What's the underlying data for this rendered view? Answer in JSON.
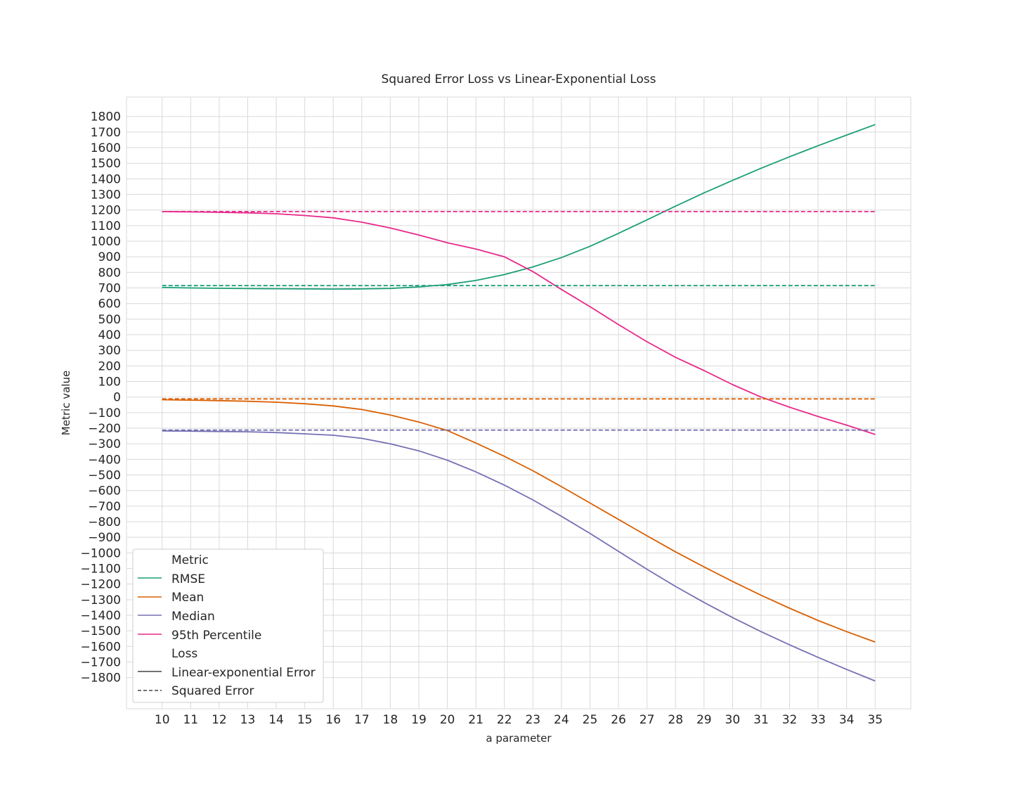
{
  "chart_data": {
    "type": "line",
    "title": "Squared Error Loss vs Linear-Exponential Loss",
    "xlabel": "a parameter",
    "ylabel": "Metric value",
    "xlim": [
      8.75,
      36.25
    ],
    "ylim": [
      -2000,
      1925
    ],
    "x_ticks": [
      10,
      11,
      12,
      13,
      14,
      15,
      16,
      17,
      18,
      19,
      20,
      21,
      22,
      23,
      24,
      25,
      26,
      27,
      28,
      29,
      30,
      31,
      32,
      33,
      34,
      35
    ],
    "y_ticks": [
      1800,
      1700,
      1600,
      1500,
      1400,
      1300,
      1200,
      1100,
      1000,
      900,
      800,
      700,
      600,
      500,
      400,
      300,
      200,
      100,
      0,
      -100,
      -200,
      -300,
      -400,
      -500,
      -600,
      -700,
      -800,
      -900,
      -1000,
      -1100,
      -1200,
      -1300,
      -1400,
      -1500,
      -1600,
      -1700,
      -1800
    ],
    "y_tick_labels": [
      "1800",
      "1700",
      "1600",
      "1500",
      "1400",
      "1300",
      "1200",
      "1100",
      "1000",
      "900",
      "800",
      "700",
      "600",
      "500",
      "400",
      "300",
      "200",
      "100",
      "0",
      "−100",
      "−200",
      "−300",
      "−400",
      "−500",
      "−600",
      "−700",
      "−800",
      "−900",
      "−1000",
      "−1100",
      "−1200",
      "−1300",
      "−1400",
      "−1500",
      "−1600",
      "−1700",
      "−1800"
    ],
    "grid": true,
    "legend_position": "bottom-left",
    "x": [
      10,
      11,
      12,
      13,
      14,
      15,
      16,
      17,
      18,
      19,
      20,
      21,
      22,
      23,
      24,
      25,
      26,
      27,
      28,
      29,
      30,
      31,
      32,
      33,
      34,
      35
    ],
    "series": [
      {
        "name": "RMSE",
        "loss": "Linear-exponential Error",
        "color": "#1b9e77",
        "dash": "solid",
        "values": [
          703,
          700,
          698,
          696,
          695,
          694,
          693,
          694,
          697,
          707,
          722,
          748,
          786,
          835,
          895,
          967,
          1050,
          1137,
          1225,
          1310,
          1390,
          1468,
          1542,
          1613,
          1681,
          1748
        ]
      },
      {
        "name": "Mean",
        "loss": "Linear-exponential Error",
        "color": "#d95f02",
        "dash": "solid",
        "values": [
          -17,
          -20,
          -23,
          -27,
          -33,
          -43,
          -57,
          -80,
          -115,
          -160,
          -215,
          -295,
          -380,
          -473,
          -575,
          -680,
          -785,
          -890,
          -993,
          -1090,
          -1183,
          -1272,
          -1355,
          -1434,
          -1505,
          -1572
        ]
      },
      {
        "name": "Median",
        "loss": "Linear-exponential Error",
        "color": "#7570b3",
        "dash": "solid",
        "values": [
          -217,
          -219,
          -221,
          -223,
          -228,
          -236,
          -245,
          -265,
          -300,
          -345,
          -405,
          -480,
          -565,
          -660,
          -765,
          -875,
          -990,
          -1105,
          -1215,
          -1318,
          -1415,
          -1505,
          -1590,
          -1670,
          -1748,
          -1822
        ]
      },
      {
        "name": "95th Percentile",
        "loss": "Linear-exponential Error",
        "color": "#e7298a",
        "dash": "solid",
        "values": [
          1190,
          1188,
          1185,
          1182,
          1176,
          1165,
          1150,
          1122,
          1085,
          1040,
          990,
          950,
          900,
          805,
          690,
          580,
          465,
          355,
          255,
          170,
          80,
          0,
          -65,
          -125,
          -180,
          -240
        ]
      },
      {
        "name": "RMSE",
        "loss": "Squared Error",
        "color": "#1b9e77",
        "dash": "dashed",
        "values": [
          715,
          715,
          715,
          715,
          715,
          715,
          715,
          715,
          715,
          715,
          715,
          715,
          715,
          715,
          715,
          715,
          715,
          715,
          715,
          715,
          715,
          715,
          715,
          715,
          715,
          715
        ]
      },
      {
        "name": "Mean",
        "loss": "Squared Error",
        "color": "#d95f02",
        "dash": "dashed",
        "values": [
          -12,
          -12,
          -12,
          -12,
          -12,
          -12,
          -12,
          -12,
          -12,
          -12,
          -12,
          -12,
          -12,
          -12,
          -12,
          -12,
          -12,
          -12,
          -12,
          -12,
          -12,
          -12,
          -12,
          -12,
          -12,
          -12
        ]
      },
      {
        "name": "Median",
        "loss": "Squared Error",
        "color": "#7570b3",
        "dash": "dashed",
        "values": [
          -212,
          -212,
          -212,
          -212,
          -212,
          -212,
          -212,
          -212,
          -212,
          -212,
          -212,
          -212,
          -212,
          -212,
          -212,
          -212,
          -212,
          -212,
          -212,
          -212,
          -212,
          -212,
          -212,
          -212,
          -212,
          -212
        ]
      },
      {
        "name": "95th Percentile",
        "loss": "Squared Error",
        "color": "#e7298a",
        "dash": "dashed",
        "values": [
          1190,
          1190,
          1190,
          1190,
          1190,
          1190,
          1190,
          1190,
          1190,
          1190,
          1190,
          1190,
          1190,
          1190,
          1190,
          1190,
          1190,
          1190,
          1190,
          1190,
          1190,
          1190,
          1190,
          1190,
          1190,
          1190
        ]
      }
    ],
    "legend": {
      "metric_header": "Metric",
      "metric_entries": [
        {
          "label": "RMSE",
          "color": "#1b9e77"
        },
        {
          "label": "Mean",
          "color": "#d95f02"
        },
        {
          "label": "Median",
          "color": "#7570b3"
        },
        {
          "label": "95th Percentile",
          "color": "#e7298a"
        }
      ],
      "loss_header": "Loss",
      "loss_entries": [
        {
          "label": "Linear-exponential Error",
          "dash": "solid",
          "color": "#444444"
        },
        {
          "label": "Squared Error",
          "dash": "dashed",
          "color": "#444444"
        }
      ]
    }
  }
}
